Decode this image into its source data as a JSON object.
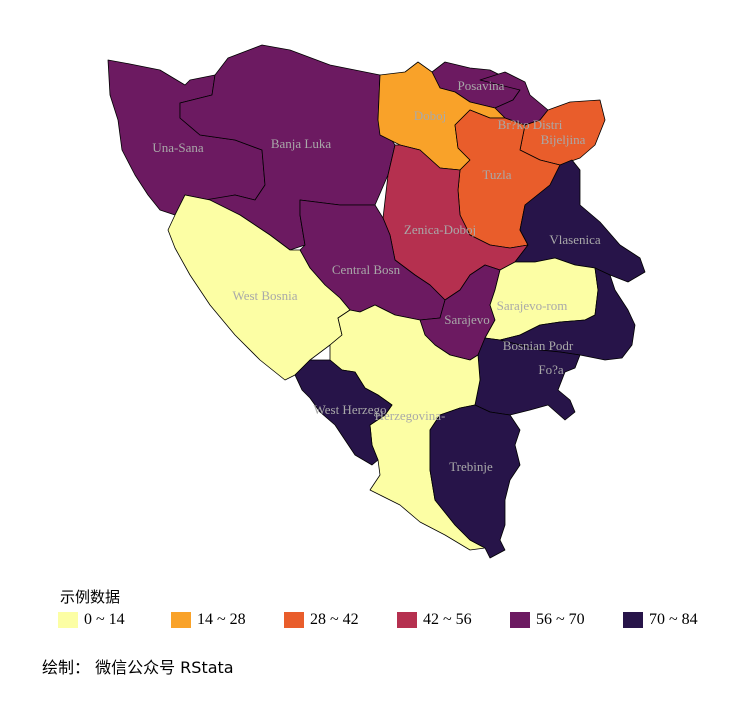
{
  "map": {
    "regions": [
      {
        "id": "una-sana",
        "label": "Una-Sana",
        "bin": 4
      },
      {
        "id": "banja-luka",
        "label": "Banja Luka",
        "bin": 4
      },
      {
        "id": "doboj",
        "label": "Doboj",
        "bin": 1
      },
      {
        "id": "posavina",
        "label": "Posavina",
        "bin": 4
      },
      {
        "id": "brcko",
        "label": "Br?ko Distri",
        "bin": 4
      },
      {
        "id": "bijeljina",
        "label": "Bijeljina",
        "bin": 2
      },
      {
        "id": "tuzla",
        "label": "Tuzla",
        "bin": 2
      },
      {
        "id": "zenica-doboj",
        "label": "Zenica-Doboj",
        "bin": 3
      },
      {
        "id": "vlasenica",
        "label": "Vlasenica",
        "bin": 5
      },
      {
        "id": "central-bosnia",
        "label": "Central Bosn",
        "bin": 4
      },
      {
        "id": "west-bosnia",
        "label": "West Bosnia",
        "bin": 0
      },
      {
        "id": "sarajevo-rom",
        "label": "Sarajevo-rom",
        "bin": 0
      },
      {
        "id": "sarajevo",
        "label": "Sarajevo",
        "bin": 4
      },
      {
        "id": "bosnian-podrinje",
        "label": "Bosnian Podr",
        "bin": 5
      },
      {
        "id": "foca",
        "label": "Fo?a",
        "bin": 5
      },
      {
        "id": "west-herzegovina",
        "label": "West Herzego",
        "bin": 5
      },
      {
        "id": "herzegovina-neretva",
        "label": "Herzegovina-",
        "bin": 0
      },
      {
        "id": "trebinje",
        "label": "Trebinje",
        "bin": 5
      }
    ]
  },
  "legend": {
    "title": "示例数据",
    "items": [
      {
        "label": "0 ~ 14",
        "color": "#fcfea4"
      },
      {
        "label": "14 ~ 28",
        "color": "#f9a229"
      },
      {
        "label": "28 ~ 42",
        "color": "#e95d2b"
      },
      {
        "label": "42 ~ 56",
        "color": "#b5304f"
      },
      {
        "label": "56 ~ 70",
        "color": "#6c1a61"
      },
      {
        "label": "70 ~ 84",
        "color": "#271449"
      }
    ]
  },
  "caption": "绘制： 微信公众号 RStata"
}
